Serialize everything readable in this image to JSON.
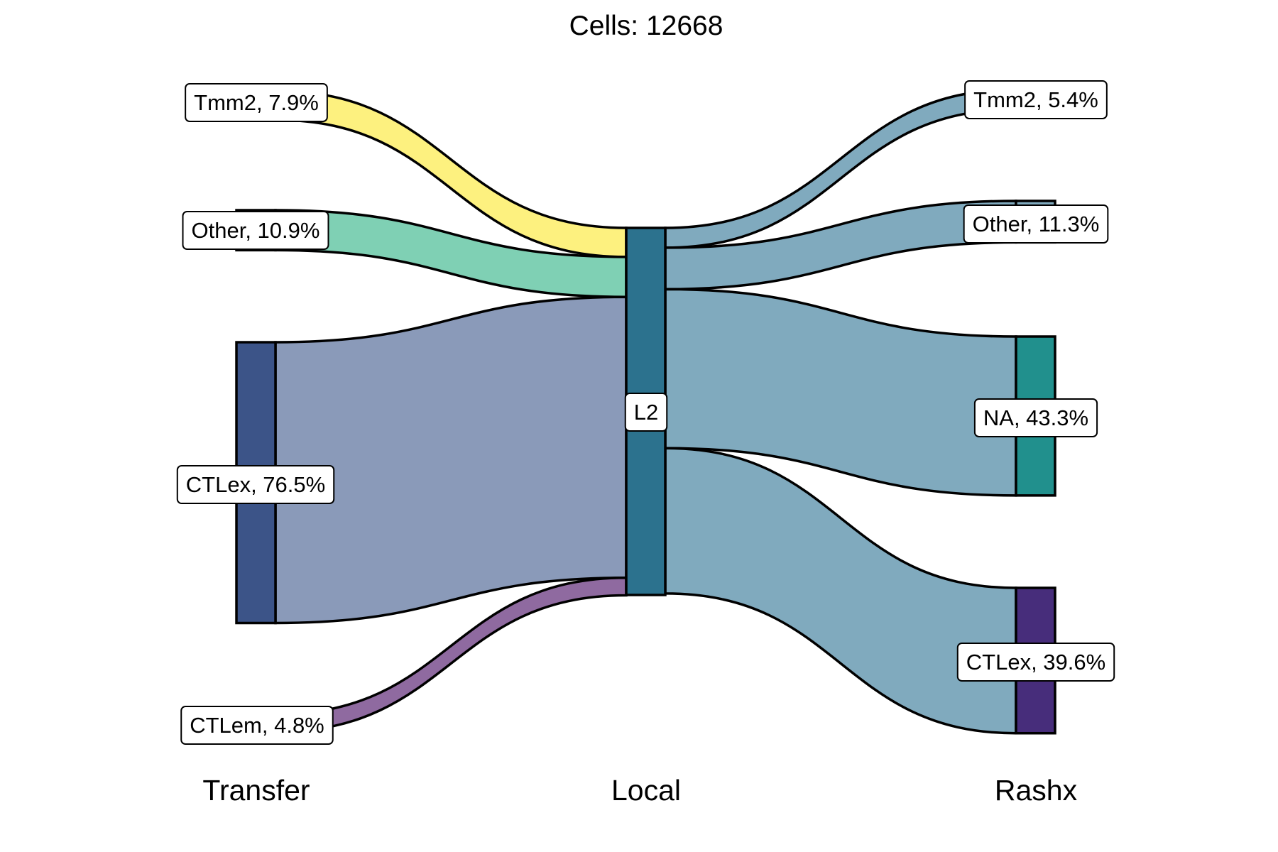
{
  "title": "Cells:  12668",
  "axes": {
    "left": "Transfer",
    "middle": "Local",
    "right": "Rashx"
  },
  "colors": {
    "transfer_ctlex": "#3c5488",
    "local_l2": "#2c728e",
    "rashx_na": "#21908d",
    "rashx_ctlex": "#472d7b",
    "flow_tmm2": "#fdf17f",
    "flow_other": "#7fd0b4",
    "flow_ctlex": "#8a9ab9",
    "flow_ctlem": "#8f6aa0",
    "flow_right": "#80aabe"
  },
  "chart_data": {
    "type": "sankey",
    "title": "Cells:  12668",
    "axes": [
      "Transfer",
      "Local",
      "Rashx"
    ],
    "total_cells": 12668,
    "nodes": {
      "Transfer": [
        {
          "name": "Tmm2",
          "percent": 7.9,
          "label": "Tmm2, 7.9%"
        },
        {
          "name": "Other",
          "percent": 10.9,
          "label": "Other, 10.9%"
        },
        {
          "name": "CTLex",
          "percent": 76.5,
          "label": "CTLex, 76.5%"
        },
        {
          "name": "CTLem",
          "percent": 4.8,
          "label": "CTLem, 4.8%"
        }
      ],
      "Local": [
        {
          "name": "L2",
          "percent": 100,
          "label": "L2"
        }
      ],
      "Rashx": [
        {
          "name": "Tmm2",
          "percent": 5.4,
          "label": "Tmm2, 5.4%"
        },
        {
          "name": "Other",
          "percent": 11.3,
          "label": "Other, 11.3%"
        },
        {
          "name": "NA",
          "percent": 43.3,
          "label": "NA, 43.3%"
        },
        {
          "name": "CTLex",
          "percent": 39.6,
          "label": "CTLex, 39.6%"
        }
      ]
    }
  }
}
